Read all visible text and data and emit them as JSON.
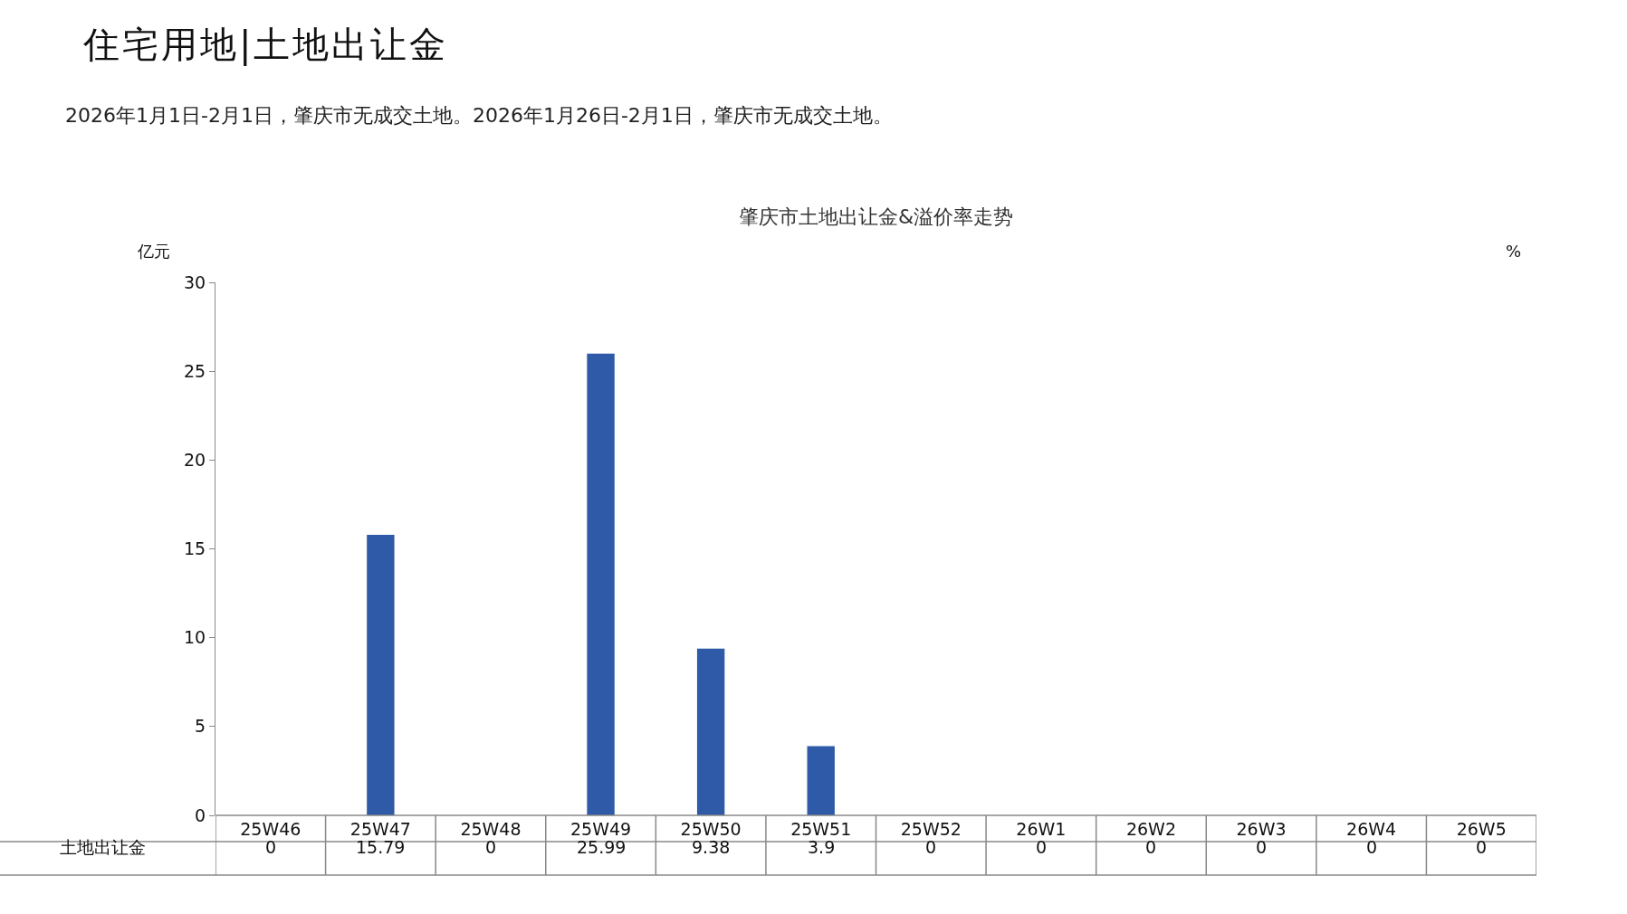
{
  "chart_data": {
    "type": "bar",
    "title": "住宅用地|土地出让金",
    "subtitle": "2026年1月1日-2月1日，肇庆市无成交土地。2026年1月26日-2月1日，肇庆市无成交土地。",
    "annotations": [
      "肇庆市土地出让金&溢价率走势"
    ],
    "ylabel": "亿元",
    "y2label": "%",
    "categories": [
      "25W46",
      "25W47",
      "25W48",
      "25W49",
      "25W50",
      "25W51",
      "25W52",
      "26W1",
      "26W2",
      "26W3",
      "26W4",
      "26W5"
    ],
    "series": [
      {
        "name": "土地出让金",
        "color": "#2e5aa7",
        "values": [
          0,
          15.79,
          0,
          25.99,
          9.38,
          3.9,
          0,
          0,
          0,
          0,
          0,
          0
        ]
      }
    ],
    "ylim": [
      0,
      30
    ],
    "yticks": [
      0,
      5,
      10,
      15,
      20,
      25,
      30
    ],
    "data_labels": true,
    "grid": false,
    "legend": false
  }
}
